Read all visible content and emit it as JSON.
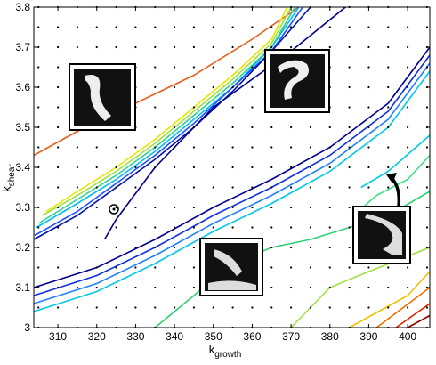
{
  "chart_data": {
    "type": "contour",
    "xlabel": "k",
    "xlabel_sub": "growth",
    "ylabel": "k",
    "ylabel_sub": "shear",
    "xlim": [
      303.8,
      405.7
    ],
    "ylim": [
      3.0,
      3.8
    ],
    "xticks": [
      310,
      320,
      330,
      340,
      350,
      360,
      370,
      380,
      390,
      400
    ],
    "yticks": [
      3,
      3.1,
      3.2,
      3.3,
      3.4,
      3.5,
      3.6,
      3.7,
      3.8
    ],
    "grid_points": {
      "color": "#000000",
      "x": [
        305,
        310,
        315,
        320,
        325,
        330,
        335,
        340,
        345,
        350,
        355,
        360,
        365,
        370,
        375,
        380,
        385,
        390,
        395,
        400,
        405
      ],
      "y": [
        3.0,
        3.05,
        3.1,
        3.15,
        3.2,
        3.25,
        3.3,
        3.35,
        3.4,
        3.45,
        3.5,
        3.55,
        3.6,
        3.65,
        3.7,
        3.75,
        3.8
      ]
    },
    "series": [
      {
        "color": "#e8601c",
        "x": [
          303.8,
          315,
          330,
          345,
          360,
          372
        ],
        "y": [
          3.43,
          3.49,
          3.56,
          3.63,
          3.72,
          3.8
        ]
      },
      {
        "color": "#e6e600",
        "x": [
          307,
          315,
          325,
          335,
          345,
          355,
          365,
          369
        ],
        "y": [
          3.29,
          3.34,
          3.4,
          3.47,
          3.55,
          3.63,
          3.72,
          3.8
        ]
      },
      {
        "color": "#a0e040",
        "x": [
          306,
          315,
          325,
          335,
          345,
          355,
          365,
          370
        ],
        "y": [
          3.28,
          3.33,
          3.39,
          3.46,
          3.54,
          3.62,
          3.71,
          3.8
        ]
      },
      {
        "color": "#30d090",
        "x": [
          305,
          315,
          325,
          335,
          345,
          355,
          365,
          371
        ],
        "y": [
          3.26,
          3.32,
          3.38,
          3.45,
          3.53,
          3.61,
          3.7,
          3.8
        ]
      },
      {
        "color": "#00c0f0",
        "x": [
          304.5,
          315,
          325,
          335,
          345,
          355,
          365,
          372
        ],
        "y": [
          3.25,
          3.31,
          3.37,
          3.44,
          3.52,
          3.6,
          3.7,
          3.8
        ]
      },
      {
        "color": "#2050ff",
        "x": [
          304,
          315,
          325,
          335,
          345,
          355,
          365,
          373
        ],
        "y": [
          3.23,
          3.29,
          3.36,
          3.43,
          3.51,
          3.6,
          3.69,
          3.8
        ]
      },
      {
        "color": "#0010b0",
        "x": [
          303.8,
          315,
          325,
          335,
          345,
          355,
          365,
          375
        ],
        "y": [
          3.22,
          3.28,
          3.35,
          3.42,
          3.5,
          3.59,
          3.69,
          3.8
        ]
      },
      {
        "color": "#000090",
        "x": [
          384,
          370,
          350,
          335,
          325,
          322
        ],
        "y": [
          3.8,
          3.69,
          3.55,
          3.4,
          3.27,
          3.22
        ]
      },
      {
        "color": "#000090",
        "x": [
          303.8,
          320,
          335,
          350,
          365,
          380,
          395,
          405.7
        ],
        "y": [
          3.1,
          3.15,
          3.22,
          3.3,
          3.37,
          3.45,
          3.56,
          3.7
        ]
      },
      {
        "color": "#1030e0",
        "x": [
          303.8,
          320,
          335,
          350,
          365,
          380,
          395,
          405.7
        ],
        "y": [
          3.08,
          3.13,
          3.2,
          3.28,
          3.35,
          3.43,
          3.54,
          3.68
        ]
      },
      {
        "color": "#2080ff",
        "x": [
          303.8,
          320,
          335,
          350,
          365,
          380,
          395,
          405.7
        ],
        "y": [
          3.06,
          3.11,
          3.18,
          3.26,
          3.33,
          3.41,
          3.52,
          3.66
        ]
      },
      {
        "color": "#00c8e8",
        "x": [
          303.8,
          320,
          335,
          350,
          365,
          380,
          395,
          405.7
        ],
        "y": [
          3.04,
          3.09,
          3.16,
          3.24,
          3.31,
          3.39,
          3.5,
          3.64
        ]
      },
      {
        "color": "#00c8e8",
        "x": [
          388,
          395,
          405.7
        ],
        "y": [
          3.35,
          3.39,
          3.48
        ]
      },
      {
        "color": "#40e080",
        "x": [
          386,
          392,
          400,
          405.7
        ],
        "y": [
          3.28,
          3.33,
          3.37,
          3.43
        ]
      },
      {
        "color": "#30d070",
        "x": [
          335,
          345,
          355,
          365,
          375,
          385,
          395,
          405.7
        ],
        "y": [
          3.0,
          3.08,
          3.16,
          3.2,
          3.22,
          3.25,
          3.28,
          3.34
        ]
      },
      {
        "color": "#a0e040",
        "x": [
          370,
          380,
          390,
          405.7
        ],
        "y": [
          3.0,
          3.1,
          3.14,
          3.2
        ]
      },
      {
        "color": "#f0c000",
        "x": [
          385,
          400,
          405.7
        ],
        "y": [
          3.0,
          3.08,
          3.14
        ]
      },
      {
        "color": "#f07000",
        "x": [
          392,
          405.7
        ],
        "y": [
          3.0,
          3.1
        ]
      },
      {
        "color": "#e02000",
        "x": [
          397,
          405.7
        ],
        "y": [
          3.0,
          3.06
        ]
      },
      {
        "color": "#900000",
        "x": [
          400,
          405.7
        ],
        "y": [
          3.0,
          3.03
        ]
      }
    ]
  }
}
